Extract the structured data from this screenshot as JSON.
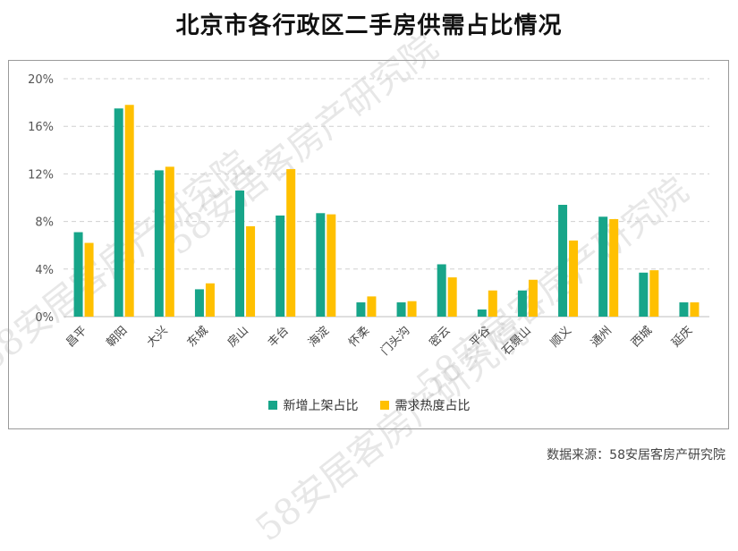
{
  "title": "北京市各行政区二手房供需占比情况",
  "source": "数据来源：58安居客房产研究院",
  "watermark": "58安居客房产研究院",
  "colors": {
    "supply": "#17a589",
    "demand": "#ffc000",
    "grid": "#d0d0d0"
  },
  "chart_data": {
    "type": "bar",
    "title": "北京市各行政区二手房供需占比情况",
    "xlabel": "",
    "ylabel": "",
    "ylim": [
      0,
      20
    ],
    "yticks": [
      "0%",
      "4%",
      "8%",
      "12%",
      "16%",
      "20%"
    ],
    "ytick_values": [
      0,
      4,
      8,
      12,
      16,
      20
    ],
    "grid": true,
    "legend": "bottom",
    "categories": [
      "昌平",
      "朝阳",
      "大兴",
      "东城",
      "房山",
      "丰台",
      "海淀",
      "怀柔",
      "门头沟",
      "密云",
      "平谷",
      "石景山",
      "顺义",
      "通州",
      "西城",
      "延庆"
    ],
    "series": [
      {
        "name": "新增上架占比",
        "color": "#17a589",
        "values": [
          7.1,
          17.5,
          12.3,
          2.3,
          10.6,
          8.5,
          8.7,
          1.2,
          1.2,
          4.4,
          0.6,
          2.2,
          9.4,
          8.4,
          3.7,
          1.2
        ]
      },
      {
        "name": "需求热度占比",
        "color": "#ffc000",
        "values": [
          6.2,
          17.8,
          12.6,
          2.8,
          7.6,
          12.4,
          8.6,
          1.7,
          1.3,
          3.3,
          2.2,
          3.1,
          6.4,
          8.2,
          3.9,
          1.2
        ]
      }
    ]
  }
}
